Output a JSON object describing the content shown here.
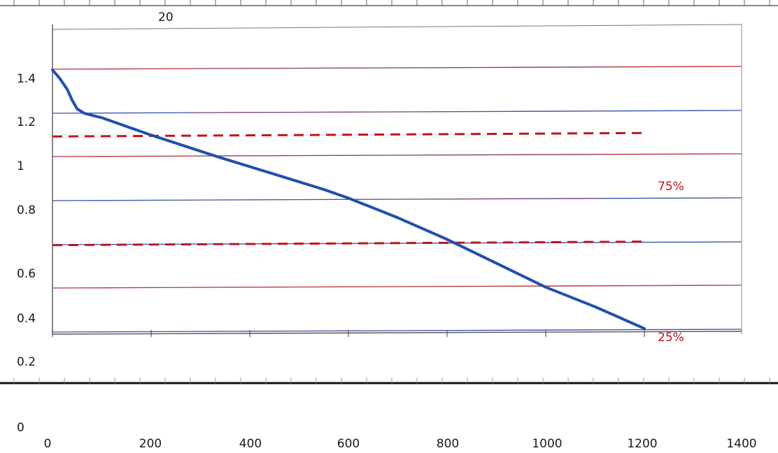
{
  "chart_data": {
    "type": "line",
    "title": "20",
    "xlabel": "",
    "ylabel": "",
    "x_ticks": [
      "0",
      "200",
      "400",
      "600",
      "800",
      "1000",
      "1200",
      "1400"
    ],
    "y_ticks": [
      "1.4",
      "1.2",
      "1",
      "0.8",
      "0.6",
      "0.4",
      "0.2",
      "0"
    ],
    "xlim": [
      0,
      1400
    ],
    "ylim": [
      0.2,
      1.4
    ],
    "grid": true,
    "series": [
      {
        "color": "#1f4fae",
        "x": [
          0,
          15,
          30,
          40,
          50,
          65,
          100,
          200,
          335,
          450,
          550,
          600,
          700,
          800,
          900,
          1000,
          1100,
          1200
        ],
        "y": [
          1.4,
          1.36,
          1.31,
          1.26,
          1.22,
          1.2,
          1.18,
          1.1,
          1.0,
          0.92,
          0.85,
          0.81,
          0.72,
          0.62,
          0.51,
          0.4,
          0.31,
          0.21
        ]
      }
    ],
    "reference_lines": [
      {
        "y": 1.1,
        "style": "dashed",
        "color": "#c0141c"
      },
      {
        "y": 0.6,
        "style": "dashed",
        "color": "#c0141c"
      }
    ],
    "annotations": [
      {
        "text": "75%",
        "color": "#c0141c"
      },
      {
        "text": "25%",
        "color": "#c0141c"
      }
    ]
  }
}
